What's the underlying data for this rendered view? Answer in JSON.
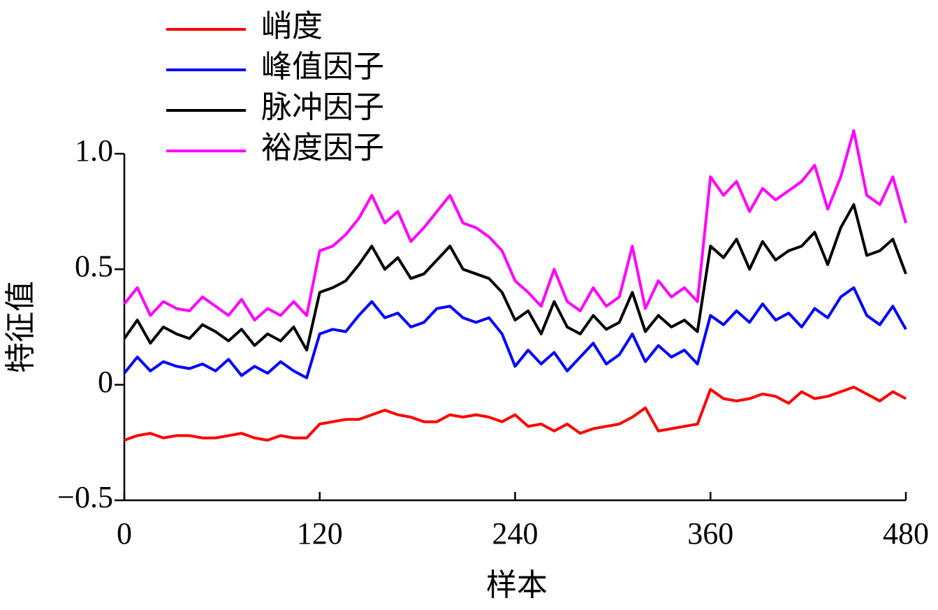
{
  "chart_data": {
    "type": "line",
    "x_label": "样本",
    "y_label": "特征值",
    "x": [
      0,
      8,
      16,
      24,
      32,
      40,
      48,
      56,
      64,
      72,
      80,
      88,
      96,
      104,
      112,
      120,
      128,
      136,
      144,
      152,
      160,
      168,
      176,
      184,
      192,
      200,
      208,
      216,
      224,
      232,
      240,
      248,
      256,
      264,
      272,
      280,
      288,
      296,
      304,
      312,
      320,
      328,
      336,
      344,
      352,
      360,
      368,
      376,
      384,
      392,
      400,
      408,
      416,
      424,
      432,
      440,
      448,
      456,
      464,
      472,
      480
    ],
    "series": [
      {
        "name": "峭度",
        "color": "#ff0000",
        "values": [
          -0.24,
          -0.22,
          -0.21,
          -0.23,
          -0.22,
          -0.22,
          -0.23,
          -0.23,
          -0.22,
          -0.21,
          -0.23,
          -0.24,
          -0.22,
          -0.23,
          -0.23,
          -0.17,
          -0.16,
          -0.15,
          -0.15,
          -0.13,
          -0.11,
          -0.13,
          -0.14,
          -0.16,
          -0.16,
          -0.13,
          -0.14,
          -0.13,
          -0.14,
          -0.16,
          -0.13,
          -0.18,
          -0.17,
          -0.2,
          -0.17,
          -0.21,
          -0.19,
          -0.18,
          -0.17,
          -0.14,
          -0.1,
          -0.2,
          -0.19,
          -0.18,
          -0.17,
          -0.02,
          -0.06,
          -0.07,
          -0.06,
          -0.04,
          -0.05,
          -0.08,
          -0.03,
          -0.06,
          -0.05,
          -0.03,
          -0.01,
          -0.04,
          -0.07,
          -0.03,
          -0.06
        ]
      },
      {
        "name": "峰值因子",
        "color": "#0000ff",
        "values": [
          0.05,
          0.12,
          0.06,
          0.1,
          0.08,
          0.07,
          0.09,
          0.06,
          0.11,
          0.04,
          0.08,
          0.05,
          0.1,
          0.06,
          0.03,
          0.22,
          0.24,
          0.23,
          0.3,
          0.36,
          0.29,
          0.31,
          0.25,
          0.27,
          0.33,
          0.34,
          0.29,
          0.27,
          0.29,
          0.22,
          0.08,
          0.15,
          0.09,
          0.14,
          0.06,
          0.12,
          0.18,
          0.09,
          0.13,
          0.22,
          0.1,
          0.17,
          0.12,
          0.15,
          0.09,
          0.3,
          0.26,
          0.32,
          0.27,
          0.35,
          0.28,
          0.31,
          0.25,
          0.33,
          0.29,
          0.38,
          0.42,
          0.3,
          0.26,
          0.34,
          0.24
        ]
      },
      {
        "name": "脉冲因子",
        "color": "#000000",
        "values": [
          0.2,
          0.28,
          0.18,
          0.25,
          0.22,
          0.2,
          0.26,
          0.23,
          0.19,
          0.24,
          0.17,
          0.22,
          0.19,
          0.25,
          0.15,
          0.4,
          0.42,
          0.45,
          0.52,
          0.6,
          0.5,
          0.55,
          0.46,
          0.48,
          0.54,
          0.6,
          0.5,
          0.48,
          0.46,
          0.4,
          0.28,
          0.32,
          0.22,
          0.36,
          0.25,
          0.22,
          0.3,
          0.24,
          0.27,
          0.4,
          0.23,
          0.3,
          0.25,
          0.28,
          0.23,
          0.6,
          0.55,
          0.63,
          0.5,
          0.62,
          0.54,
          0.58,
          0.6,
          0.66,
          0.52,
          0.68,
          0.78,
          0.56,
          0.58,
          0.63,
          0.48
        ]
      },
      {
        "name": "裕度因子",
        "color": "#ff00ff",
        "values": [
          0.35,
          0.42,
          0.3,
          0.36,
          0.33,
          0.32,
          0.38,
          0.34,
          0.3,
          0.37,
          0.28,
          0.33,
          0.3,
          0.36,
          0.3,
          0.58,
          0.6,
          0.65,
          0.72,
          0.82,
          0.7,
          0.75,
          0.62,
          0.68,
          0.75,
          0.82,
          0.7,
          0.68,
          0.64,
          0.58,
          0.45,
          0.4,
          0.34,
          0.5,
          0.36,
          0.32,
          0.42,
          0.34,
          0.38,
          0.6,
          0.33,
          0.45,
          0.38,
          0.42,
          0.36,
          0.9,
          0.82,
          0.88,
          0.75,
          0.85,
          0.8,
          0.84,
          0.88,
          0.95,
          0.76,
          0.9,
          1.1,
          0.82,
          0.78,
          0.9,
          0.7
        ]
      }
    ],
    "xlim": [
      0,
      480
    ],
    "xticks": [
      0,
      120,
      240,
      360,
      480
    ],
    "ylim": [
      -0.5,
      1.0
    ],
    "yticks": [
      {
        "value": -0.5,
        "label": "−0.5"
      },
      0,
      0.5,
      {
        "value": 1.0,
        "label": "1.0"
      }
    ],
    "grid": false,
    "legend": "upper left"
  }
}
